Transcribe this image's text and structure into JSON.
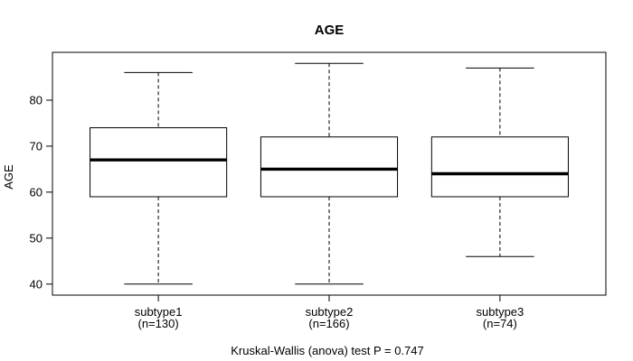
{
  "chart_data": {
    "type": "boxplot",
    "title": "AGE",
    "ylabel": "AGE",
    "footer": "Kruskal-Wallis (anova) test P = 0.747",
    "yticks": [
      40,
      50,
      60,
      70,
      80
    ],
    "ylim": [
      37.6,
      90.4
    ],
    "xlim": [
      0.38,
      3.62
    ],
    "box_width": 0.8,
    "grid": false,
    "groups": [
      {
        "label": "subtype1",
        "n_label": "(n=130)",
        "n": 130,
        "lower_whisker": 40,
        "q1": 59,
        "median": 67,
        "q3": 74,
        "upper_whisker": 86
      },
      {
        "label": "subtype2",
        "n_label": "(n=166)",
        "n": 166,
        "lower_whisker": 40,
        "q1": 59,
        "median": 65,
        "q3": 72,
        "upper_whisker": 88
      },
      {
        "label": "subtype3",
        "n_label": "(n=74)",
        "n": 74,
        "lower_whisker": 46,
        "q1": 59,
        "median": 64,
        "q3": 72,
        "upper_whisker": 87
      }
    ]
  }
}
